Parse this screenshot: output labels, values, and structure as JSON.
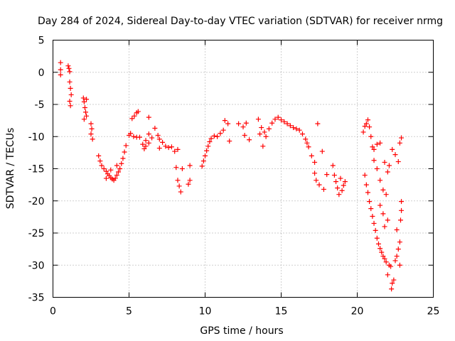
{
  "chart_data": {
    "type": "scatter",
    "title": "Day 284 of 2024, Sidereal Day-to-day VTEC variation (SDTVAR) for receiver nrmg",
    "xlabel": "GPS time / hours",
    "ylabel": "SDTVAR / TECUs",
    "xlim": [
      0,
      25
    ],
    "ylim": [
      -35,
      5
    ],
    "xticks": [
      0,
      5,
      10,
      15,
      20,
      25
    ],
    "yticks": [
      5,
      0,
      -5,
      -10,
      -15,
      -20,
      -25,
      -30,
      -35
    ],
    "grid": true,
    "marker": "+",
    "marker_color": "#ff0000",
    "series": [
      {
        "name": "SDTVAR",
        "points": [
          [
            0.5,
            1.5
          ],
          [
            0.5,
            0.4
          ],
          [
            0.5,
            -0.4
          ],
          [
            1.0,
            1.0
          ],
          [
            1.05,
            0.6
          ],
          [
            1.1,
            0.1
          ],
          [
            1.1,
            -1.5
          ],
          [
            1.15,
            -2.5
          ],
          [
            1.2,
            -3.5
          ],
          [
            1.1,
            -4.5
          ],
          [
            1.15,
            -5.2
          ],
          [
            2.0,
            -4.0
          ],
          [
            2.05,
            -4.6
          ],
          [
            2.1,
            -5.5
          ],
          [
            2.15,
            -6.2
          ],
          [
            2.2,
            -6.8
          ],
          [
            2.05,
            -7.3
          ],
          [
            2.2,
            -4.2
          ],
          [
            2.5,
            -8.0
          ],
          [
            2.55,
            -8.8
          ],
          [
            2.5,
            -9.6
          ],
          [
            2.6,
            -10.4
          ],
          [
            3.0,
            -13.0
          ],
          [
            3.1,
            -13.8
          ],
          [
            3.2,
            -14.5
          ],
          [
            3.35,
            -15.0
          ],
          [
            3.5,
            -15.4
          ],
          [
            3.6,
            -15.8
          ],
          [
            3.7,
            -16.1
          ],
          [
            3.8,
            -16.4
          ],
          [
            3.9,
            -16.6
          ],
          [
            4.0,
            -16.8
          ],
          [
            4.1,
            -16.5
          ],
          [
            4.2,
            -16.0
          ],
          [
            4.3,
            -15.5
          ],
          [
            4.4,
            -15.0
          ],
          [
            4.5,
            -14.2
          ],
          [
            4.6,
            -13.4
          ],
          [
            4.7,
            -12.4
          ],
          [
            4.8,
            -11.4
          ],
          [
            3.5,
            -16.5
          ],
          [
            3.8,
            -15.2
          ],
          [
            4.2,
            -14.5
          ],
          [
            5.0,
            -9.8
          ],
          [
            5.1,
            -9.5
          ],
          [
            5.2,
            -7.2
          ],
          [
            5.35,
            -6.8
          ],
          [
            5.5,
            -6.3
          ],
          [
            5.6,
            -6.1
          ],
          [
            5.3,
            -10.0
          ],
          [
            5.5,
            -10.1
          ],
          [
            5.7,
            -10.1
          ],
          [
            5.9,
            -11.2
          ],
          [
            6.0,
            -11.9
          ],
          [
            6.1,
            -11.5
          ],
          [
            6.1,
            -10.6
          ],
          [
            6.3,
            -9.6
          ],
          [
            6.3,
            -7.0
          ],
          [
            6.3,
            -11.0
          ],
          [
            6.7,
            -8.7
          ],
          [
            6.9,
            -9.8
          ],
          [
            7.0,
            -10.4
          ],
          [
            7.2,
            -10.9
          ],
          [
            7.4,
            -11.5
          ],
          [
            7.6,
            -11.7
          ],
          [
            7.8,
            -11.6
          ],
          [
            8.0,
            -12.3
          ],
          [
            8.2,
            -12.0
          ],
          [
            6.5,
            -10.2
          ],
          [
            7.0,
            -11.8
          ],
          [
            8.1,
            -14.8
          ],
          [
            8.2,
            -16.8
          ],
          [
            8.3,
            -17.7
          ],
          [
            8.4,
            -18.6
          ],
          [
            8.5,
            -15.0
          ],
          [
            8.9,
            -17.4
          ],
          [
            9.0,
            -16.8
          ],
          [
            9.0,
            -14.5
          ],
          [
            9.8,
            -14.6
          ],
          [
            9.9,
            -13.8
          ],
          [
            10.0,
            -13.0
          ],
          [
            10.1,
            -12.2
          ],
          [
            10.2,
            -11.5
          ],
          [
            10.3,
            -10.8
          ],
          [
            10.4,
            -10.3
          ],
          [
            10.6,
            -9.9
          ],
          [
            10.8,
            -10.0
          ],
          [
            11.0,
            -9.5
          ],
          [
            11.2,
            -9.0
          ],
          [
            11.3,
            -7.5
          ],
          [
            11.5,
            -8.0
          ],
          [
            11.6,
            -10.7
          ],
          [
            12.2,
            -8.0
          ],
          [
            12.5,
            -8.5
          ],
          [
            12.6,
            -9.8
          ],
          [
            12.9,
            -10.5
          ],
          [
            12.7,
            -7.9
          ],
          [
            13.5,
            -7.3
          ],
          [
            13.7,
            -8.6
          ],
          [
            13.9,
            -9.3
          ],
          [
            13.6,
            -9.6
          ],
          [
            13.8,
            -11.5
          ],
          [
            14.0,
            -10.0
          ],
          [
            14.2,
            -8.8
          ],
          [
            14.4,
            -7.9
          ],
          [
            14.6,
            -7.3
          ],
          [
            14.8,
            -7.0
          ],
          [
            15.0,
            -7.4
          ],
          [
            15.2,
            -7.7
          ],
          [
            15.4,
            -8.0
          ],
          [
            15.6,
            -8.3
          ],
          [
            15.8,
            -8.6
          ],
          [
            16.0,
            -8.8
          ],
          [
            16.2,
            -9.0
          ],
          [
            16.4,
            -9.6
          ],
          [
            16.6,
            -10.4
          ],
          [
            16.7,
            -11.0
          ],
          [
            17.0,
            -13.0
          ],
          [
            17.2,
            -14.0
          ],
          [
            17.4,
            -8.0
          ],
          [
            16.8,
            -11.6
          ],
          [
            17.2,
            -15.7
          ],
          [
            17.3,
            -16.8
          ],
          [
            17.5,
            -17.5
          ],
          [
            17.8,
            -18.2
          ],
          [
            17.7,
            -12.3
          ],
          [
            18.0,
            -15.9
          ],
          [
            18.5,
            -16.0
          ],
          [
            18.6,
            -17.0
          ],
          [
            18.7,
            -18.0
          ],
          [
            18.8,
            -19.0
          ],
          [
            19.0,
            -18.4
          ],
          [
            19.1,
            -17.6
          ],
          [
            19.2,
            -17.0
          ],
          [
            18.4,
            -14.5
          ],
          [
            18.9,
            -16.5
          ],
          [
            20.4,
            -9.3
          ],
          [
            20.5,
            -8.4
          ],
          [
            20.6,
            -8.0
          ],
          [
            20.7,
            -7.4
          ],
          [
            20.8,
            -8.5
          ],
          [
            20.9,
            -10.0
          ],
          [
            21.0,
            -11.6
          ],
          [
            21.1,
            -12.0
          ],
          [
            21.3,
            -11.2
          ],
          [
            21.5,
            -11.0
          ],
          [
            21.1,
            -13.7
          ],
          [
            21.3,
            -15.0
          ],
          [
            21.5,
            -16.8
          ],
          [
            21.7,
            -18.3
          ],
          [
            21.9,
            -19.0
          ],
          [
            21.8,
            -14.0
          ],
          [
            22.0,
            -15.5
          ],
          [
            22.1,
            -14.5
          ],
          [
            22.3,
            -12.0
          ],
          [
            22.5,
            -12.8
          ],
          [
            22.7,
            -13.9
          ],
          [
            22.8,
            -11.0
          ],
          [
            22.9,
            -10.2
          ],
          [
            20.5,
            -16.0
          ],
          [
            20.6,
            -17.5
          ],
          [
            20.7,
            -18.7
          ],
          [
            20.8,
            -20.1
          ],
          [
            20.9,
            -21.2
          ],
          [
            21.0,
            -22.4
          ],
          [
            21.1,
            -23.5
          ],
          [
            21.2,
            -24.6
          ],
          [
            21.3,
            -25.8
          ],
          [
            21.4,
            -26.7
          ],
          [
            21.5,
            -27.4
          ],
          [
            21.6,
            -28.0
          ],
          [
            21.7,
            -28.6
          ],
          [
            21.8,
            -29.0
          ],
          [
            21.9,
            -29.5
          ],
          [
            22.0,
            -31.5
          ],
          [
            22.1,
            -30.0
          ],
          [
            22.2,
            -30.2
          ],
          [
            22.3,
            -32.8
          ],
          [
            22.4,
            -32.3
          ],
          [
            22.25,
            -33.7
          ],
          [
            22.5,
            -29.3
          ],
          [
            22.6,
            -28.6
          ],
          [
            22.7,
            -27.5
          ],
          [
            22.8,
            -26.4
          ],
          [
            22.85,
            -23.0
          ],
          [
            22.9,
            -21.5
          ],
          [
            22.9,
            -20.1
          ],
          [
            22.8,
            -30.0
          ],
          [
            21.8,
            -24.0
          ],
          [
            22.0,
            -23.0
          ],
          [
            21.7,
            -22.0
          ],
          [
            21.5,
            -20.7
          ],
          [
            22.6,
            -24.5
          ]
        ]
      }
    ]
  }
}
